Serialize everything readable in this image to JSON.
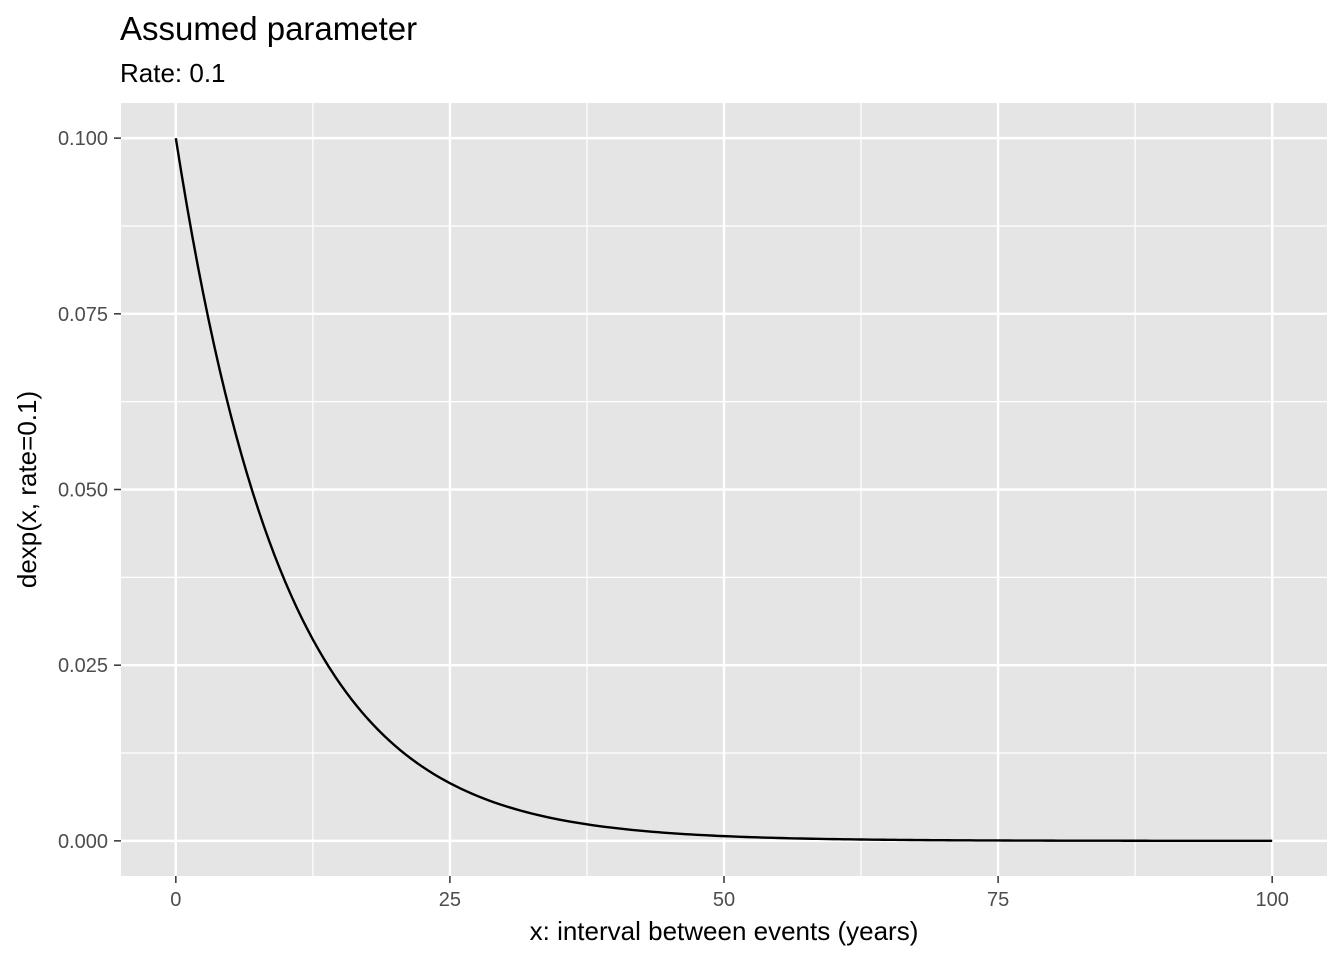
{
  "chart_data": {
    "type": "line",
    "title": "Assumed parameter",
    "subtitle": "Rate: 0.1",
    "xlabel": "x: interval between events (years)",
    "ylabel": "dexp(x, rate=0.1)",
    "xlim": [
      -5,
      105
    ],
    "ylim": [
      -0.005,
      0.105
    ],
    "x_ticks": [
      0,
      25,
      50,
      75,
      100
    ],
    "x_tick_labels": [
      "0",
      "25",
      "50",
      "75",
      "100"
    ],
    "y_ticks": [
      0,
      0.025,
      0.05,
      0.075,
      0.1
    ],
    "y_tick_labels": [
      "0.000",
      "0.025",
      "0.050",
      "0.075",
      "0.100"
    ],
    "grid": true,
    "series": [
      {
        "x": [
          0,
          2.5,
          5,
          7.5,
          10,
          12.5,
          15,
          17.5,
          20,
          22.5,
          25,
          27.5,
          30,
          32.5,
          35,
          37.5,
          40,
          42.5,
          45,
          47.5,
          50,
          55,
          60,
          65,
          70,
          75,
          80,
          85,
          90,
          95,
          100
        ],
        "values": [
          0.1,
          0.0779,
          0.0607,
          0.0472,
          0.0368,
          0.0287,
          0.0223,
          0.0174,
          0.0135,
          0.0105,
          0.0082,
          0.0064,
          0.005,
          0.0039,
          0.003,
          0.0024,
          0.0018,
          0.0014,
          0.0011,
          0.0009,
          0.0007,
          0.0004,
          0.0002,
          0.0002,
          0.0001,
          0.0001,
          0.0,
          0.0,
          0.0,
          0.0,
          0.0
        ],
        "color": "#000000"
      }
    ],
    "colors": {
      "panel": "#e5e5e5",
      "grid": "#ffffff",
      "tick_text": "#4d4d4d",
      "tick_mark": "#333333"
    }
  }
}
